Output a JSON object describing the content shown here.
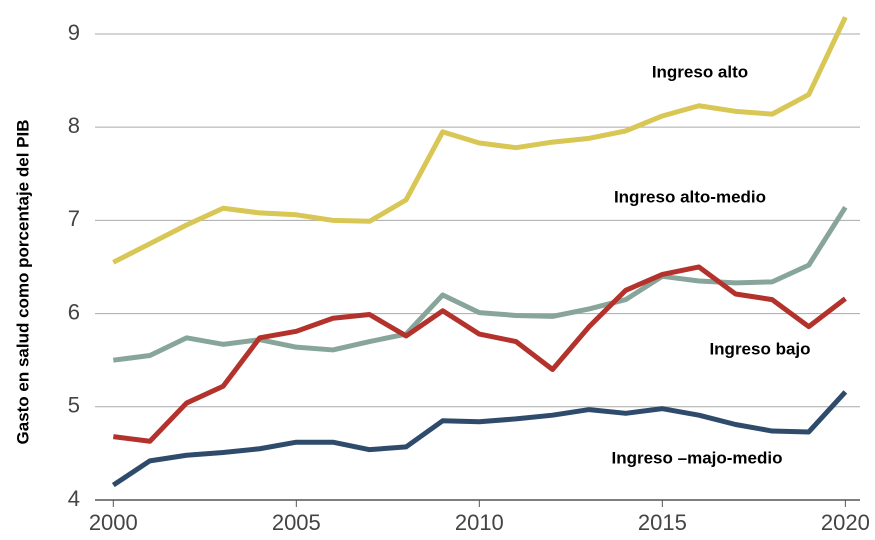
{
  "chart_data": {
    "type": "line",
    "ylabel": "Gasto en salud como porcentaje del PIB",
    "x": [
      2000,
      2001,
      2002,
      2003,
      2004,
      2005,
      2006,
      2007,
      2008,
      2009,
      2010,
      2011,
      2012,
      2013,
      2014,
      2015,
      2016,
      2017,
      2018,
      2019,
      2020
    ],
    "series": [
      {
        "name": "Ingreso alto",
        "color": "#d8c655",
        "values": [
          6.55,
          6.75,
          6.95,
          7.13,
          7.08,
          7.06,
          7.0,
          6.99,
          7.22,
          7.95,
          7.83,
          7.78,
          7.84,
          7.88,
          7.96,
          8.12,
          8.23,
          8.17,
          8.14,
          8.35,
          9.18
        ]
      },
      {
        "name": "Ingreso alto-medio",
        "color": "#88a59c",
        "values": [
          5.5,
          5.55,
          5.74,
          5.67,
          5.72,
          5.64,
          5.61,
          5.7,
          5.78,
          6.2,
          6.01,
          5.98,
          5.97,
          6.05,
          6.15,
          6.4,
          6.35,
          6.33,
          6.34,
          6.52,
          7.14
        ]
      },
      {
        "name": "Ingreso bajo",
        "color": "#b3322c",
        "values": [
          4.68,
          4.63,
          5.04,
          5.22,
          5.74,
          5.81,
          5.95,
          5.99,
          5.76,
          6.03,
          5.78,
          5.7,
          5.4,
          5.86,
          6.25,
          6.42,
          6.5,
          6.21,
          6.15,
          5.86,
          6.16
        ]
      },
      {
        "name": "Ingreso –majo-medio",
        "color": "#2f4b6b",
        "values": [
          4.16,
          4.42,
          4.48,
          4.51,
          4.55,
          4.62,
          4.62,
          4.54,
          4.57,
          4.85,
          4.84,
          4.87,
          4.91,
          4.97,
          4.93,
          4.98,
          4.91,
          4.81,
          4.74,
          4.73,
          5.16
        ]
      }
    ],
    "xlim": [
      1999.5,
      2020.4
    ],
    "xticks": [
      2000,
      2005,
      2010,
      2015,
      2020
    ],
    "ylim": [
      4,
      9.3
    ],
    "yticks": [
      4,
      5,
      6,
      7,
      8,
      9
    ],
    "grid": true
  }
}
